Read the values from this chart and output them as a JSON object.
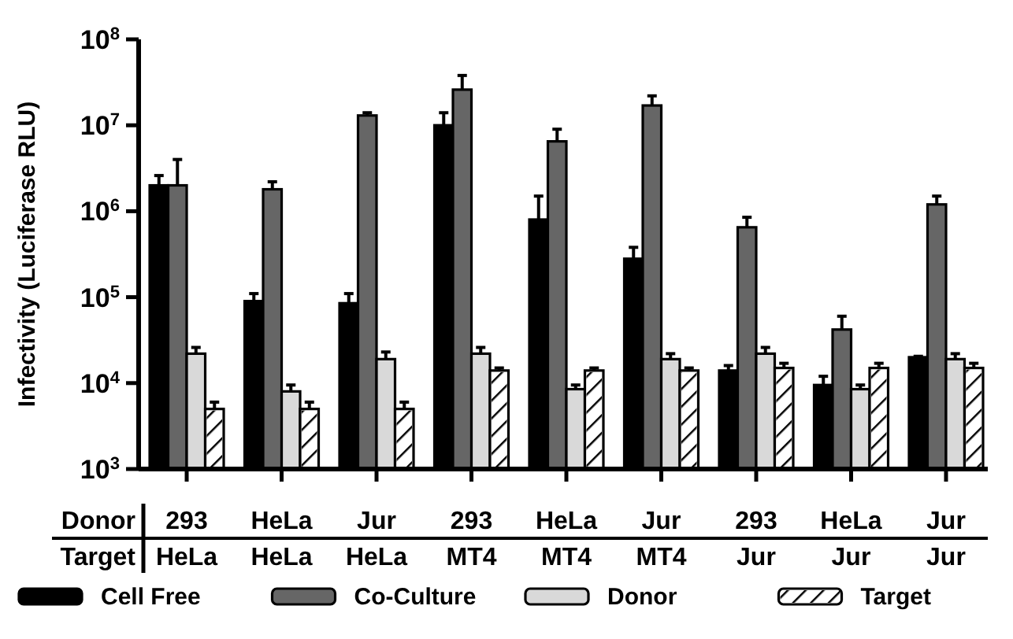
{
  "chart_data": {
    "type": "bar",
    "ylabel": "Infectivity (Luciferase RLU)",
    "log": "y",
    "ylim": [
      1000,
      100000000
    ],
    "yticks": [
      {
        "value": 1000,
        "label": "10$^{3}$"
      },
      {
        "value": 10000,
        "label": "10$^{4}$"
      },
      {
        "value": 100000,
        "label": "10$^{5}$"
      },
      {
        "value": 1000000,
        "label": "10$^{6}$"
      },
      {
        "value": 10000000,
        "label": "10$^{7}$"
      },
      {
        "value": 100000000,
        "label": "10$^{8}$"
      }
    ],
    "categories": [
      "293\nHeLa",
      "HeLa\nHeLa",
      "Jur\nHeLa",
      "293\nMT4",
      "HeLa\nMT4",
      "Jur\nMT4",
      "293\nJur",
      "HeLa\nJur",
      "Jur\nJur"
    ],
    "annotations": [
      "Donor",
      "Target"
    ],
    "legend": "bottom",
    "grid": false,
    "series": [
      {
        "name": "Cell Free",
        "color": "#000000",
        "values": [
          2000000,
          90000,
          85000,
          10000000,
          800000,
          280000,
          14000,
          9500,
          20000
        ],
        "errors": [
          [
            2000000,
            2600000
          ],
          [
            90000,
            110000
          ],
          [
            85000,
            110000
          ],
          [
            10000000,
            14000000
          ],
          [
            800000,
            1500000
          ],
          [
            280000,
            380000
          ],
          [
            14000,
            16000
          ],
          [
            9500,
            12000
          ],
          [
            20000,
            20500
          ]
        ]
      },
      {
        "name": "Co-Culture",
        "color": "#666666",
        "values": [
          2000000,
          1800000,
          13000000,
          26000000,
          6500000,
          17000000,
          650000,
          42000,
          1200000
        ],
        "errors": [
          [
            2000000,
            4000000
          ],
          [
            1800000,
            2200000
          ],
          [
            13000000,
            14000000
          ],
          [
            26000000,
            38000000
          ],
          [
            6500000,
            9000000
          ],
          [
            17000000,
            22000000
          ],
          [
            650000,
            850000
          ],
          [
            42000,
            60000
          ],
          [
            1200000,
            1500000
          ]
        ]
      },
      {
        "name": "Donor",
        "color": "#d9d9d9",
        "values": [
          22000,
          8000,
          19000,
          22000,
          8500,
          19000,
          22000,
          8500,
          19000
        ],
        "errors": [
          [
            22000,
            26000
          ],
          [
            8000,
            9500
          ],
          [
            19000,
            23000
          ],
          [
            22000,
            26000
          ],
          [
            8500,
            9500
          ],
          [
            19000,
            22000
          ],
          [
            22000,
            26000
          ],
          [
            8500,
            9500
          ],
          [
            19000,
            22000
          ]
        ]
      },
      {
        "name": "Target",
        "color": "#ffffff",
        "values": [
          5000,
          5000,
          5000,
          14000,
          14000,
          14000,
          15000,
          15000,
          15000
        ],
        "errors": [
          [
            5000,
            6000
          ],
          [
            5000,
            6000
          ],
          [
            5000,
            6000
          ],
          [
            14000,
            15000
          ],
          [
            14000,
            15000
          ],
          [
            14000,
            15000
          ],
          [
            15000,
            17000
          ],
          [
            15000,
            17000
          ],
          [
            15000,
            17000
          ]
        ]
      }
    ]
  }
}
